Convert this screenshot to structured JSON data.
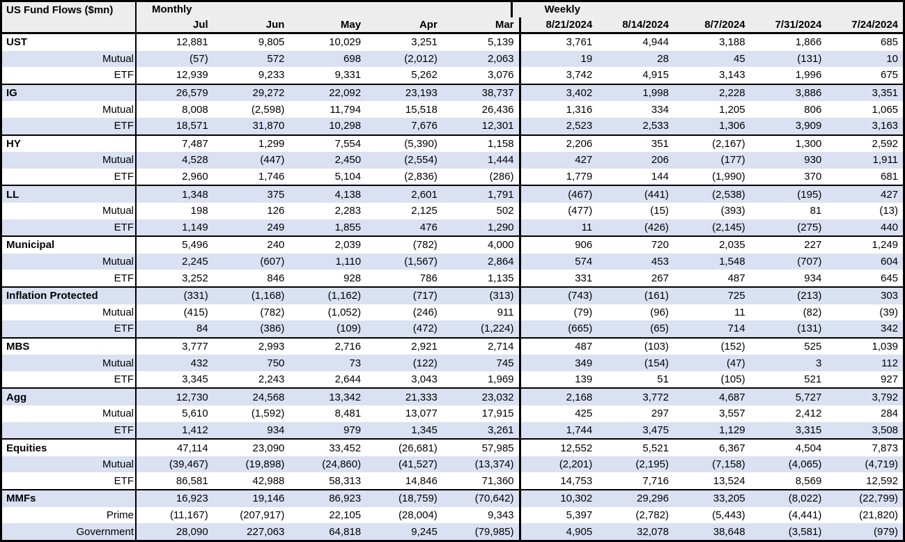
{
  "table": {
    "title": "US Fund Flows ($mn)",
    "sections": {
      "monthly": "Monthly",
      "weekly": "Weekly"
    },
    "monthly_columns": [
      "Jul",
      "Jun",
      "May",
      "Apr",
      "Mar"
    ],
    "weekly_columns": [
      "8/21/2024",
      "8/14/2024",
      "8/7/2024",
      "7/31/2024",
      "7/24/2024"
    ],
    "colors": {
      "stripe": "#d9e1f2",
      "header_bg": "#ededed",
      "border": "#000000"
    },
    "groups": [
      {
        "name": "UST",
        "rows": [
          {
            "label": "UST",
            "monthly": [
              "12,881",
              "9,805",
              "10,029",
              "3,251",
              "5,139"
            ],
            "weekly": [
              "3,761",
              "4,944",
              "3,188",
              "1,866",
              "685"
            ]
          },
          {
            "label": "Mutual",
            "monthly": [
              "(57)",
              "572",
              "698",
              "(2,012)",
              "2,063"
            ],
            "weekly": [
              "19",
              "28",
              "45",
              "(131)",
              "10"
            ]
          },
          {
            "label": "ETF",
            "monthly": [
              "12,939",
              "9,233",
              "9,331",
              "5,262",
              "3,076"
            ],
            "weekly": [
              "3,742",
              "4,915",
              "3,143",
              "1,996",
              "675"
            ]
          }
        ]
      },
      {
        "name": "IG",
        "rows": [
          {
            "label": "IG",
            "monthly": [
              "26,579",
              "29,272",
              "22,092",
              "23,193",
              "38,737"
            ],
            "weekly": [
              "3,402",
              "1,998",
              "2,228",
              "3,886",
              "3,351"
            ]
          },
          {
            "label": "Mutual",
            "monthly": [
              "8,008",
              "(2,598)",
              "11,794",
              "15,518",
              "26,436"
            ],
            "weekly": [
              "1,316",
              "334",
              "1,205",
              "806",
              "1,065"
            ]
          },
          {
            "label": "ETF",
            "monthly": [
              "18,571",
              "31,870",
              "10,298",
              "7,676",
              "12,301"
            ],
            "weekly": [
              "2,523",
              "2,533",
              "1,306",
              "3,909",
              "3,163"
            ]
          }
        ]
      },
      {
        "name": "HY",
        "rows": [
          {
            "label": "HY",
            "monthly": [
              "7,487",
              "1,299",
              "7,554",
              "(5,390)",
              "1,158"
            ],
            "weekly": [
              "2,206",
              "351",
              "(2,167)",
              "1,300",
              "2,592"
            ]
          },
          {
            "label": "Mutual",
            "monthly": [
              "4,528",
              "(447)",
              "2,450",
              "(2,554)",
              "1,444"
            ],
            "weekly": [
              "427",
              "206",
              "(177)",
              "930",
              "1,911"
            ]
          },
          {
            "label": "ETF",
            "monthly": [
              "2,960",
              "1,746",
              "5,104",
              "(2,836)",
              "(286)"
            ],
            "weekly": [
              "1,779",
              "144",
              "(1,990)",
              "370",
              "681"
            ]
          }
        ]
      },
      {
        "name": "LL",
        "rows": [
          {
            "label": "LL",
            "monthly": [
              "1,348",
              "375",
              "4,138",
              "2,601",
              "1,791"
            ],
            "weekly": [
              "(467)",
              "(441)",
              "(2,538)",
              "(195)",
              "427"
            ]
          },
          {
            "label": "Mutual",
            "monthly": [
              "198",
              "126",
              "2,283",
              "2,125",
              "502"
            ],
            "weekly": [
              "(477)",
              "(15)",
              "(393)",
              "81",
              "(13)"
            ]
          },
          {
            "label": "ETF",
            "monthly": [
              "1,149",
              "249",
              "1,855",
              "476",
              "1,290"
            ],
            "weekly": [
              "11",
              "(426)",
              "(2,145)",
              "(275)",
              "440"
            ]
          }
        ]
      },
      {
        "name": "Municipal",
        "rows": [
          {
            "label": "Municipal",
            "monthly": [
              "5,496",
              "240",
              "2,039",
              "(782)",
              "4,000"
            ],
            "weekly": [
              "906",
              "720",
              "2,035",
              "227",
              "1,249"
            ]
          },
          {
            "label": "Mutual",
            "monthly": [
              "2,245",
              "(607)",
              "1,110",
              "(1,567)",
              "2,864"
            ],
            "weekly": [
              "574",
              "453",
              "1,548",
              "(707)",
              "604"
            ]
          },
          {
            "label": "ETF",
            "monthly": [
              "3,252",
              "846",
              "928",
              "786",
              "1,135"
            ],
            "weekly": [
              "331",
              "267",
              "487",
              "934",
              "645"
            ]
          }
        ]
      },
      {
        "name": "Inflation Protected",
        "rows": [
          {
            "label": "Inflation Protected",
            "monthly": [
              "(331)",
              "(1,168)",
              "(1,162)",
              "(717)",
              "(313)"
            ],
            "weekly": [
              "(743)",
              "(161)",
              "725",
              "(213)",
              "303"
            ]
          },
          {
            "label": "Mutual",
            "monthly": [
              "(415)",
              "(782)",
              "(1,052)",
              "(246)",
              "911"
            ],
            "weekly": [
              "(79)",
              "(96)",
              "11",
              "(82)",
              "(39)"
            ]
          },
          {
            "label": "ETF",
            "monthly": [
              "84",
              "(386)",
              "(109)",
              "(472)",
              "(1,224)"
            ],
            "weekly": [
              "(665)",
              "(65)",
              "714",
              "(131)",
              "342"
            ]
          }
        ]
      },
      {
        "name": "MBS",
        "rows": [
          {
            "label": "MBS",
            "monthly": [
              "3,777",
              "2,993",
              "2,716",
              "2,921",
              "2,714"
            ],
            "weekly": [
              "487",
              "(103)",
              "(152)",
              "525",
              "1,039"
            ]
          },
          {
            "label": "Mutual",
            "monthly": [
              "432",
              "750",
              "73",
              "(122)",
              "745"
            ],
            "weekly": [
              "349",
              "(154)",
              "(47)",
              "3",
              "112"
            ]
          },
          {
            "label": "ETF",
            "monthly": [
              "3,345",
              "2,243",
              "2,644",
              "3,043",
              "1,969"
            ],
            "weekly": [
              "139",
              "51",
              "(105)",
              "521",
              "927"
            ]
          }
        ]
      },
      {
        "name": "Agg",
        "rows": [
          {
            "label": "Agg",
            "monthly": [
              "12,730",
              "24,568",
              "13,342",
              "21,333",
              "23,032"
            ],
            "weekly": [
              "2,168",
              "3,772",
              "4,687",
              "5,727",
              "3,792"
            ]
          },
          {
            "label": "Mutual",
            "monthly": [
              "5,610",
              "(1,592)",
              "8,481",
              "13,077",
              "17,915"
            ],
            "weekly": [
              "425",
              "297",
              "3,557",
              "2,412",
              "284"
            ]
          },
          {
            "label": "ETF",
            "monthly": [
              "1,412",
              "934",
              "979",
              "1,345",
              "3,261"
            ],
            "weekly": [
              "1,744",
              "3,475",
              "1,129",
              "3,315",
              "3,508"
            ]
          }
        ]
      },
      {
        "name": "Equities",
        "rows": [
          {
            "label": "Equities",
            "monthly": [
              "47,114",
              "23,090",
              "33,452",
              "(26,681)",
              "57,985"
            ],
            "weekly": [
              "12,552",
              "5,521",
              "6,367",
              "4,504",
              "7,873"
            ]
          },
          {
            "label": "Mutual",
            "monthly": [
              "(39,467)",
              "(19,898)",
              "(24,860)",
              "(41,527)",
              "(13,374)"
            ],
            "weekly": [
              "(2,201)",
              "(2,195)",
              "(7,158)",
              "(4,065)",
              "(4,719)"
            ]
          },
          {
            "label": "ETF",
            "monthly": [
              "86,581",
              "42,988",
              "58,313",
              "14,846",
              "71,360"
            ],
            "weekly": [
              "14,753",
              "7,716",
              "13,524",
              "8,569",
              "12,592"
            ]
          }
        ]
      },
      {
        "name": "MMFs",
        "rows": [
          {
            "label": "MMFs",
            "monthly": [
              "16,923",
              "19,146",
              "86,923",
              "(18,759)",
              "(70,642)"
            ],
            "weekly": [
              "10,302",
              "29,296",
              "33,205",
              "(8,022)",
              "(22,799)"
            ]
          },
          {
            "label": "Prime",
            "monthly": [
              "(11,167)",
              "(207,917)",
              "22,105",
              "(28,004)",
              "9,343"
            ],
            "weekly": [
              "5,397",
              "(2,782)",
              "(5,443)",
              "(4,441)",
              "(21,820)"
            ]
          },
          {
            "label": "Government",
            "monthly": [
              "28,090",
              "227,063",
              "64,818",
              "9,245",
              "(79,985)"
            ],
            "weekly": [
              "4,905",
              "32,078",
              "38,648",
              "(3,581)",
              "(979)"
            ]
          }
        ]
      }
    ]
  }
}
